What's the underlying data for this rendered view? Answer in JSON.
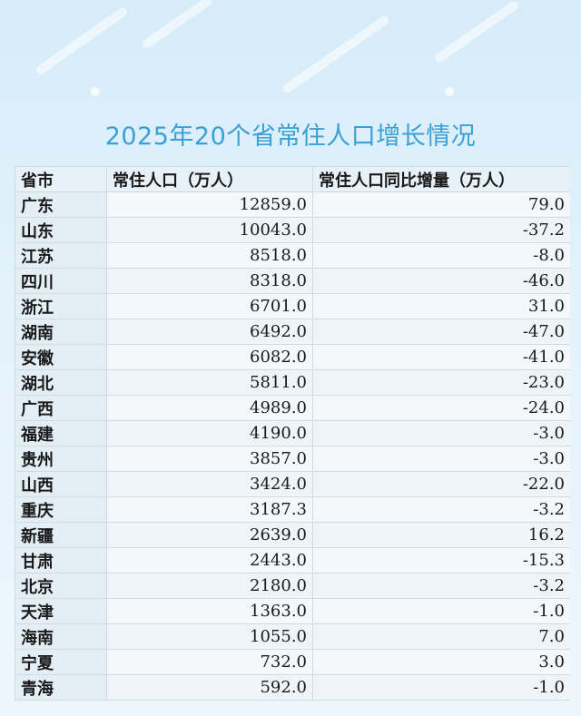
{
  "title": "2025年20个省常住人口增长情况",
  "table": {
    "headers": [
      "省市",
      "常住人口（万人）",
      "常住人口同比增量（万人）"
    ],
    "rows": [
      {
        "province": "广东",
        "population": "12859.0",
        "change": "79.0"
      },
      {
        "province": "山东",
        "population": "10043.0",
        "change": "-37.2"
      },
      {
        "province": "江苏",
        "population": "8518.0",
        "change": "-8.0"
      },
      {
        "province": "四川",
        "population": "8318.0",
        "change": "-46.0"
      },
      {
        "province": "浙江",
        "population": "6701.0",
        "change": "31.0"
      },
      {
        "province": "湖南",
        "population": "6492.0",
        "change": "-47.0"
      },
      {
        "province": "安徽",
        "population": "6082.0",
        "change": "-41.0"
      },
      {
        "province": "湖北",
        "population": "5811.0",
        "change": "-23.0"
      },
      {
        "province": "广西",
        "population": "4989.0",
        "change": "-24.0"
      },
      {
        "province": "福建",
        "population": "4190.0",
        "change": "-3.0"
      },
      {
        "province": "贵州",
        "population": "3857.0",
        "change": "-3.0"
      },
      {
        "province": "山西",
        "population": "3424.0",
        "change": "-22.0"
      },
      {
        "province": "重庆",
        "population": "3187.3",
        "change": "-3.2"
      },
      {
        "province": "新疆",
        "population": "2639.0",
        "change": "16.2"
      },
      {
        "province": "甘肃",
        "population": "2443.0",
        "change": "-15.3"
      },
      {
        "province": "北京",
        "population": "2180.0",
        "change": "-3.2"
      },
      {
        "province": "天津",
        "population": "1363.0",
        "change": "-1.0"
      },
      {
        "province": "海南",
        "population": "1055.0",
        "change": "7.0"
      },
      {
        "province": "宁夏",
        "population": "732.0",
        "change": "3.0"
      },
      {
        "province": "青海",
        "population": "592.0",
        "change": "-1.0"
      }
    ]
  },
  "colors": {
    "title": "#3aa0d6",
    "background": "#e3f2fb"
  }
}
